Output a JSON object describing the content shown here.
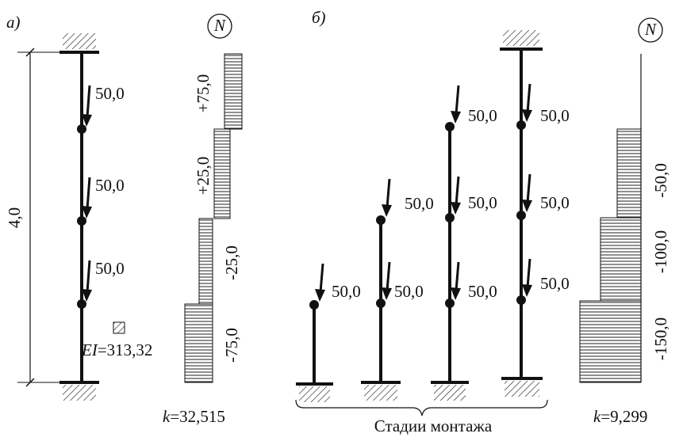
{
  "panel_a": {
    "label": "а)",
    "dimension": "4,0",
    "loads": [
      "50,0",
      "50,0",
      "50,0"
    ],
    "force_diagram": {
      "symbol": "N",
      "labels": [
        "+75,0",
        "+25,0",
        "-25,0",
        "-75,0"
      ]
    },
    "stiffness": {
      "symbol": "EI",
      "value": "=313,32"
    },
    "coefficient": {
      "symbol": "k",
      "value": "=32,515"
    }
  },
  "panel_b": {
    "label": "б)",
    "stages": [
      {
        "loads": [
          "50,0"
        ]
      },
      {
        "loads": [
          "50,0",
          "50,0"
        ]
      },
      {
        "loads": [
          "50,0",
          "50,0",
          "50,0"
        ]
      },
      {
        "loads": [
          "50,0",
          "50,0",
          "50,0"
        ]
      }
    ],
    "caption": "Стадии монтажа",
    "force_diagram": {
      "symbol": "N",
      "labels": [
        "-50,0",
        "-100,0",
        "-150,0"
      ]
    },
    "coefficient": {
      "symbol": "k",
      "value": "=9,299"
    }
  }
}
